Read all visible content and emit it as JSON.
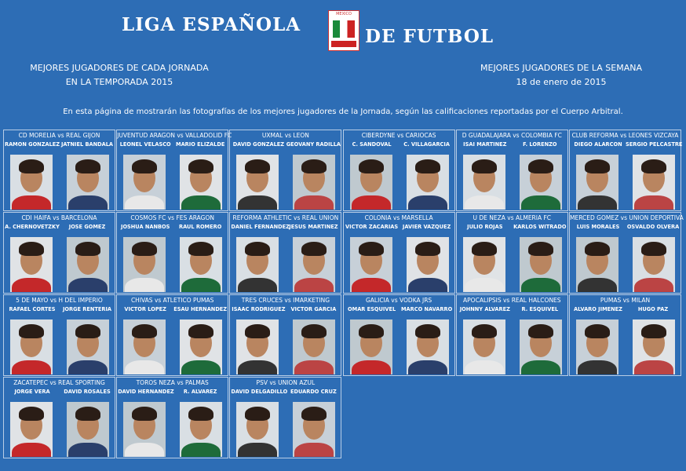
{
  "header": {
    "title_left": "LIGA ESPAÑOLA",
    "title_right": "DE FUTBOL",
    "logo_text": "MEXICO"
  },
  "left_heading": [
    "MEJORES JUGADORES DE CADA JORNADA",
    "EN LA TEMPORADA 2015"
  ],
  "right_heading": [
    "MEJORES JUGADORES DE LA SEMANA",
    "18 de enero de 2015"
  ],
  "intro": "En esta página de mostrarán las fotografías de los mejores jugadores de la Jornada, según las calificaciones reportadas por el Cuerpo Arbitral.",
  "matches": [
    {
      "title": "CD MORELIA vs REAL GIJON",
      "players": [
        "RAMON GONZALEZ",
        "JATNIEL BANDALA"
      ]
    },
    {
      "title": "JUVENTUD ARAGON vs VALLADOLID FC",
      "players": [
        "LEONEL VELASCO",
        "MARIO ELIZALDE"
      ]
    },
    {
      "title": "UXMAL vs LEON",
      "players": [
        "DAVID GONZALEZ",
        "GEOVANY RADILLA"
      ]
    },
    {
      "title": "CIBERDYNE vs CARIOCAS",
      "players": [
        "C. SANDOVAL",
        "C. VILLAGARCIA"
      ]
    },
    {
      "title": "D GUADALAJARA vs COLOMBIA FC",
      "players": [
        "ISAI MARTINEZ",
        "F. LORENZO"
      ]
    },
    {
      "title": "CLUB REFORMA vs LEONES VIZCAYA",
      "players": [
        "DIEGO ALARCON",
        "SERGIO PELCASTRE"
      ]
    },
    {
      "title": "CDI HAIFA vs BARCELONA",
      "players": [
        "A. CHERNOVETZKY",
        "JOSE GOMEZ"
      ]
    },
    {
      "title": "COSMOS FC vs FES ARAGON",
      "players": [
        "JOSHUA NANBOS",
        "RAUL ROMERO"
      ]
    },
    {
      "title": "REFORMA ATHLETIC vs REAL UNION",
      "players": [
        "DANIEL FERNANDEZ",
        "JESUS MARTINEZ"
      ]
    },
    {
      "title": "COLONIA vs MARSELLA",
      "players": [
        "VICTOR ZACARIAS",
        "JAVIER VAZQUEZ"
      ]
    },
    {
      "title": "U DE NEZA vs ALMERIA FC",
      "players": [
        "JULIO ROJAS",
        "KARLOS WITRADO"
      ]
    },
    {
      "title": "MERCED GOMEZ vs UNION DEPORTIVA",
      "players": [
        "LUIS MORALES",
        "OSVALDO OLVERA"
      ]
    },
    {
      "title": "5 DE MAYO vs H DEL IMPERIO",
      "players": [
        "RAFAEL CORTES",
        "JORGE RENTERIA"
      ]
    },
    {
      "title": "CHIVAS vs ATLETICO PUMAS",
      "players": [
        "VICTOR LOPEZ",
        "ESAU HERNANDEZ"
      ]
    },
    {
      "title": "TRES CRUCES vs IMARKETING",
      "players": [
        "ISAAC RODRIGUEZ",
        "VICTOR GARCIA"
      ]
    },
    {
      "title": "GALICIA vs VODKA JRS",
      "players": [
        "OMAR ESQUIVEL",
        "MARCO NAVARRO"
      ]
    },
    {
      "title": "APOCALIPSIS vs REAL HALCONES",
      "players": [
        "JOHNNY ALVAREZ",
        "R. ESQUIVEL"
      ]
    },
    {
      "title": "PUMAS vs MILAN",
      "players": [
        "ALVARO JIMENEZ",
        "HUGO PAZ"
      ]
    },
    {
      "title": "ZACATEPEC vs REAL SPORTING",
      "players": [
        "JORGE VERA",
        "DAVID ROSALES"
      ]
    },
    {
      "title": "TOROS NEZA vs PALMAS",
      "players": [
        "DAVID HERNANDEZ",
        "R. ALVAREZ"
      ]
    },
    {
      "title": "PSV vs UNION AZUL",
      "players": [
        "DAVID DELGADILLO",
        "EDUARDO CRUZ"
      ]
    }
  ]
}
